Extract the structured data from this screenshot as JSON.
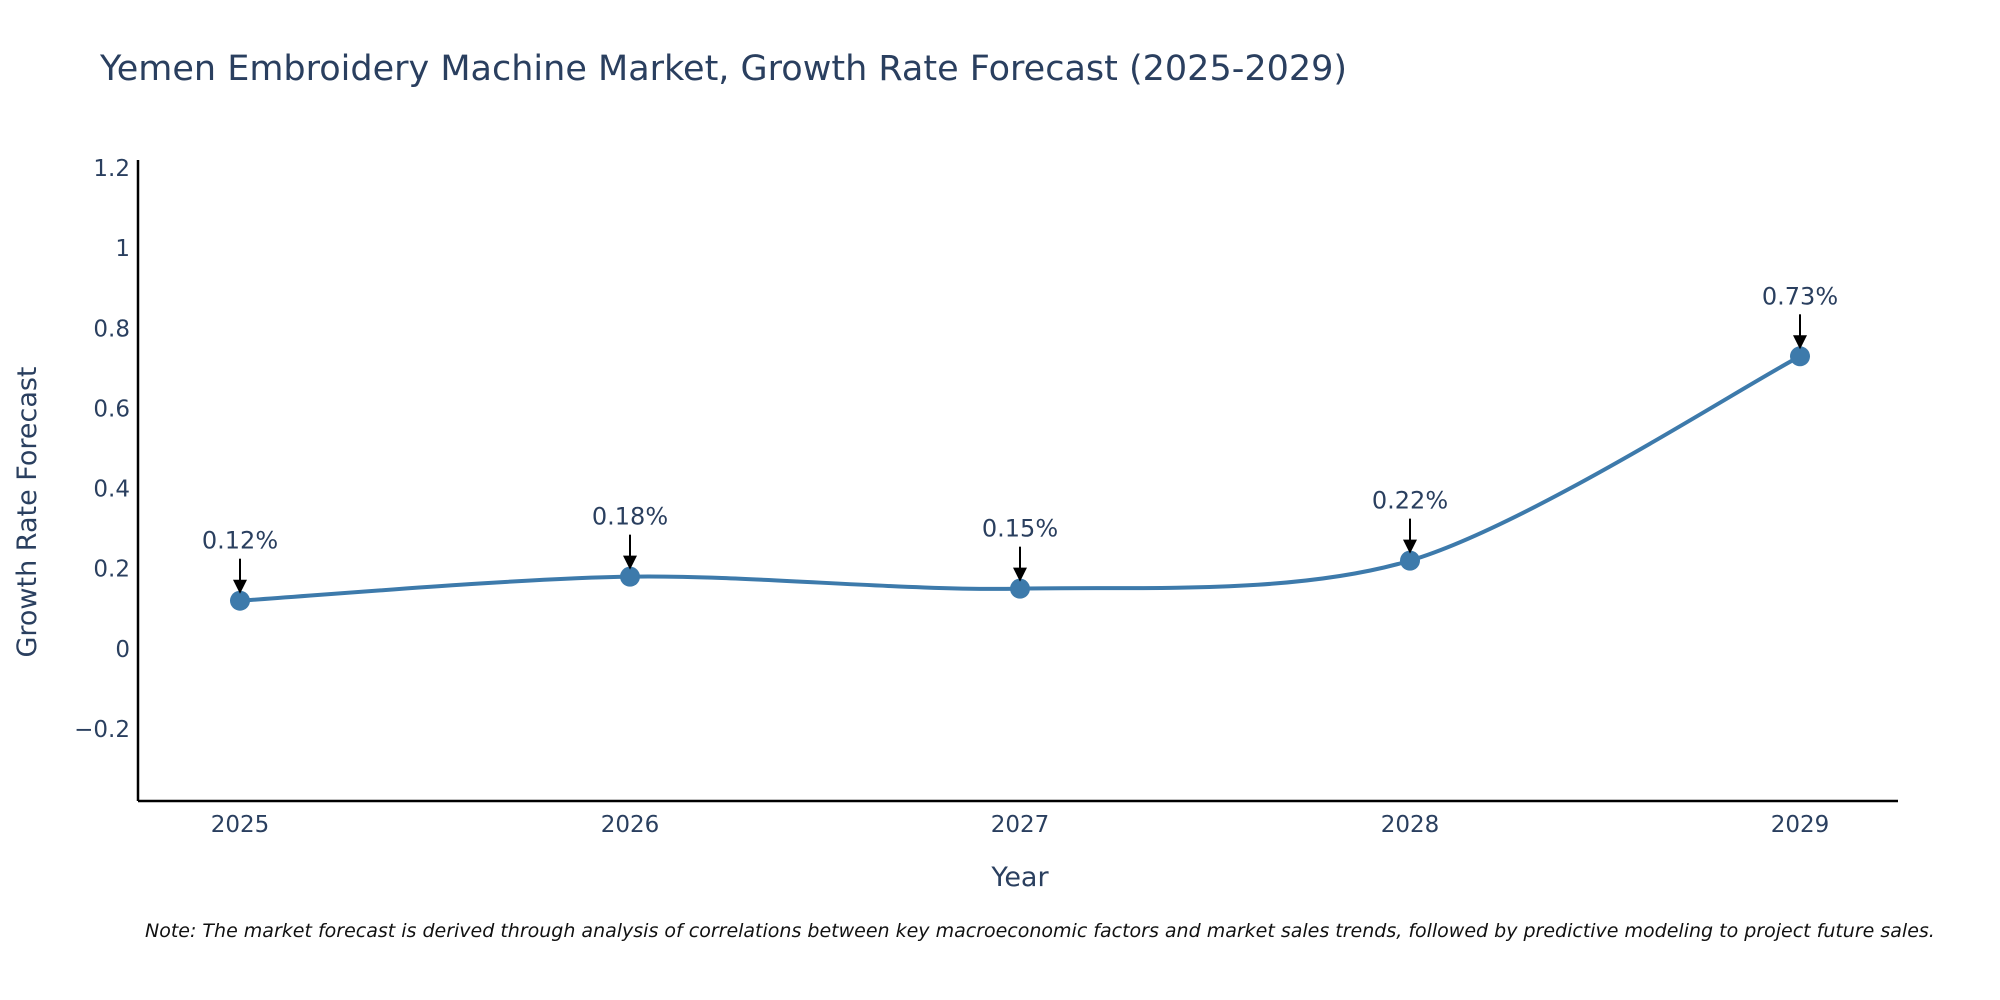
{
  "chart_data": {
    "type": "line",
    "title": "Yemen Embroidery Machine Market, Growth Rate Forecast (2025-2029)",
    "xlabel": "Year",
    "ylabel": "Growth Rate Forecast",
    "categories": [
      "2025",
      "2026",
      "2027",
      "2028",
      "2029"
    ],
    "series": [
      {
        "name": "Growth Rate Forecast",
        "values": [
          0.12,
          0.18,
          0.15,
          0.22,
          0.73
        ]
      }
    ],
    "data_labels": [
      "0.12%",
      "0.18%",
      "0.15%",
      "0.22%",
      "0.73%"
    ],
    "ylim": [
      -0.38,
      1.22
    ],
    "yticks": [
      -0.2,
      0,
      0.2,
      0.4,
      0.6,
      0.8,
      1,
      1.2
    ],
    "ytick_labels": [
      "−0.2",
      "0",
      "0.2",
      "0.4",
      "0.6",
      "0.8",
      "1",
      "1.2"
    ],
    "grid": false,
    "line_color": "#3d7aab",
    "marker_color": "#3d7aab",
    "text_color": "#2a3f5f",
    "axis_color": "#000000"
  },
  "note": "Note: The market forecast is derived through analysis of correlations between key macroeconomic factors and market sales trends, followed by predictive modeling to project future sales."
}
